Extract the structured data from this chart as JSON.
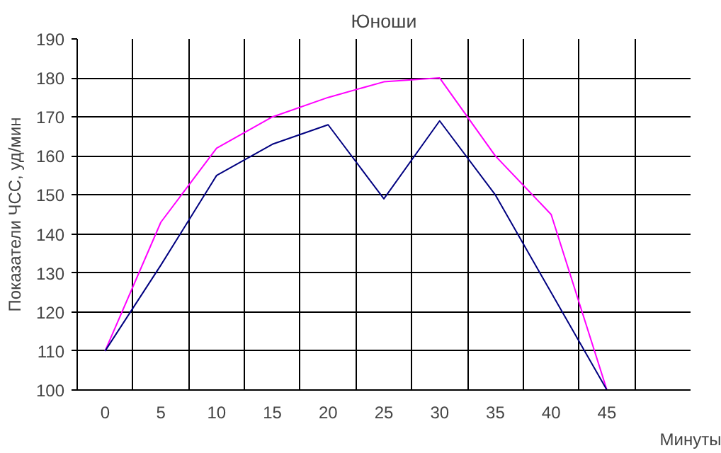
{
  "chart_data": {
    "type": "line",
    "title": "Юноши",
    "xlabel": "Минуты",
    "ylabel": "Показатели ЧСС, уд/мин",
    "categories": [
      "0",
      "5",
      "10",
      "15",
      "20",
      "25",
      "30",
      "35",
      "40",
      "45",
      null
    ],
    "series": [
      {
        "color": "#ff00ff",
        "values": [
          110,
          143,
          162,
          170,
          175,
          179,
          180,
          160,
          145,
          100,
          null
        ]
      },
      {
        "color": "#000080",
        "values": [
          110,
          132,
          155,
          163,
          168,
          149,
          169,
          150,
          125,
          100,
          null
        ]
      }
    ],
    "ylim": [
      100,
      190
    ],
    "yticks": [
      100,
      110,
      120,
      130,
      140,
      150,
      160,
      170,
      180,
      190
    ],
    "grid": true,
    "marker": "none",
    "line_style": "solid"
  }
}
